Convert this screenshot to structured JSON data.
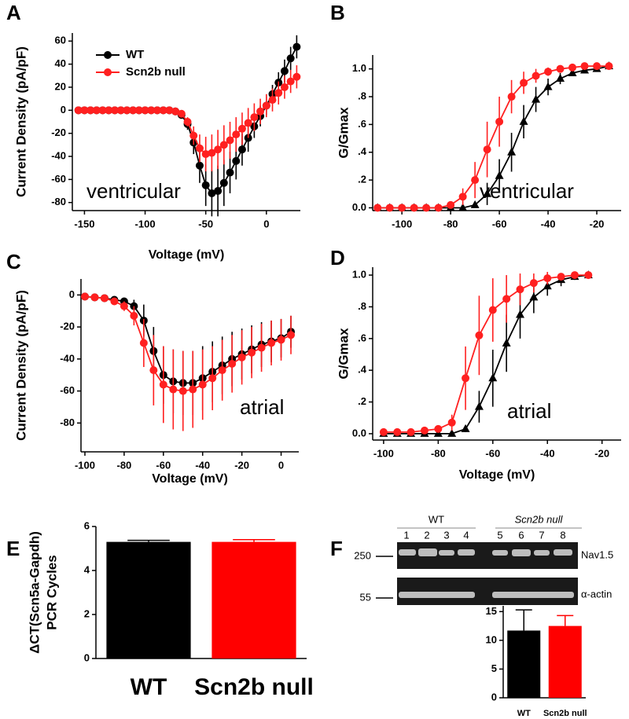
{
  "chart_data": [
    {
      "type": "line",
      "panel": "A",
      "xlabel": "Voltage (mV)",
      "ylabel": "Current Density (pA/pF)",
      "annotation": "ventricular",
      "xlim": [
        -160,
        28
      ],
      "ylim": [
        -87,
        67
      ],
      "xticks": [
        -150,
        -100,
        -50,
        0
      ],
      "yticks": [
        -80,
        -60,
        -40,
        -20,
        0,
        20,
        40,
        60
      ],
      "legend": "upper left",
      "x": [
        -155,
        -150,
        -145,
        -140,
        -135,
        -130,
        -125,
        -120,
        -115,
        -110,
        -105,
        -100,
        -95,
        -90,
        -85,
        -80,
        -75,
        -70,
        -65,
        -60,
        -55,
        -50,
        -45,
        -40,
        -35,
        -30,
        -25,
        -20,
        -15,
        -10,
        -5,
        0,
        5,
        10,
        15,
        20,
        25
      ],
      "series": [
        {
          "name": "WT",
          "color": "#000000",
          "marker": "circle",
          "values": [
            0,
            0,
            0,
            0,
            0,
            0,
            0,
            0,
            0,
            0,
            0,
            0,
            0,
            0,
            0,
            0,
            -1,
            -4,
            -12,
            -28,
            -48,
            -65,
            -72,
            -70,
            -63,
            -54,
            -44,
            -34,
            -24,
            -14,
            -5,
            4,
            14,
            24,
            34,
            45,
            55
          ],
          "errors": [
            0,
            0,
            0,
            0,
            0,
            0,
            0,
            0,
            0,
            0,
            0,
            0,
            0,
            0,
            0,
            0,
            1,
            2,
            5,
            10,
            15,
            18,
            20,
            22,
            20,
            18,
            16,
            14,
            12,
            10,
            9,
            8,
            8,
            9,
            10,
            10,
            10
          ]
        },
        {
          "name": "Scn2b null",
          "color": "#ff2020",
          "marker": "circle",
          "values": [
            0,
            0,
            0,
            0,
            0,
            0,
            0,
            0,
            0,
            0,
            0,
            0,
            0,
            0,
            0,
            0,
            -1,
            -3,
            -10,
            -22,
            -33,
            -38,
            -37,
            -34,
            -30,
            -26,
            -21,
            -16,
            -11,
            -6,
            -1,
            4,
            9,
            15,
            20,
            25,
            29
          ],
          "errors": [
            0,
            0,
            0,
            0,
            0,
            0,
            0,
            0,
            0,
            0,
            0,
            0,
            0,
            0,
            0,
            0,
            1,
            2,
            4,
            8,
            12,
            15,
            16,
            17,
            17,
            16,
            15,
            14,
            13,
            12,
            11,
            10,
            10,
            10,
            10,
            10,
            10
          ]
        }
      ]
    },
    {
      "type": "line",
      "panel": "B",
      "ylabel": "G/Gmax",
      "annotation": "ventricular",
      "xlim": [
        -112,
        -10
      ],
      "ylim": [
        -0.02,
        1.1
      ],
      "xticks": [
        -100,
        -80,
        -60,
        -40,
        -20
      ],
      "yticks": [
        {
          "value": 0,
          "label": "0.0"
        },
        {
          "value": 0.2,
          "label": ".2"
        },
        {
          "value": 0.4,
          "label": ".4"
        },
        {
          "value": 0.6,
          "label": ".6"
        },
        {
          "value": 0.8,
          "label": ".8"
        },
        {
          "value": 1,
          "label": "1.0"
        }
      ],
      "x": [
        -110,
        -105,
        -100,
        -95,
        -90,
        -85,
        -80,
        -75,
        -70,
        -65,
        -60,
        -55,
        -50,
        -45,
        -40,
        -35,
        -30,
        -25,
        -20,
        -15
      ],
      "series": [
        {
          "color": "#000000",
          "marker": "triangle",
          "values": [
            0,
            0,
            0,
            0,
            0,
            0,
            0,
            0,
            0.02,
            0.1,
            0.23,
            0.4,
            0.62,
            0.78,
            0.87,
            0.93,
            0.97,
            0.99,
            1.0,
            1.02
          ],
          "errors": [
            0,
            0,
            0,
            0,
            0,
            0,
            0,
            0,
            0.02,
            0.08,
            0.12,
            0.14,
            0.12,
            0.09,
            0.06,
            0.04,
            0.02,
            0.02,
            0.01,
            0.01
          ]
        },
        {
          "color": "#ff2020",
          "marker": "circle",
          "values": [
            0,
            0,
            0,
            0,
            0,
            0,
            0.02,
            0.08,
            0.2,
            0.42,
            0.62,
            0.8,
            0.9,
            0.95,
            0.98,
            1.0,
            1.01,
            1.02,
            1.02,
            1.02
          ],
          "errors": [
            0,
            0,
            0,
            0,
            0,
            0,
            0.02,
            0.06,
            0.13,
            0.2,
            0.18,
            0.12,
            0.08,
            0.05,
            0.03,
            0.02,
            0.01,
            0.01,
            0.01,
            0.01
          ]
        }
      ]
    },
    {
      "type": "line",
      "panel": "C",
      "xlabel": "Voltage (mV)",
      "ylabel": "Current Density (pA/pF)",
      "annotation": "atrial",
      "xlim": [
        -102,
        9
      ],
      "ylim": [
        -98,
        10
      ],
      "xticks": [
        -100,
        -80,
        -60,
        -40,
        -20,
        0
      ],
      "yticks": [
        -80,
        -60,
        -40,
        -20,
        0
      ],
      "x": [
        -100,
        -95,
        -90,
        -85,
        -80,
        -75,
        -70,
        -65,
        -60,
        -55,
        -50,
        -45,
        -40,
        -35,
        -30,
        -25,
        -20,
        -15,
        -10,
        -5,
        0,
        5
      ],
      "series": [
        {
          "color": "#000000",
          "marker": "circle",
          "values": [
            -1,
            -1.5,
            -2,
            -3,
            -4,
            -7,
            -16,
            -35,
            -50,
            -54,
            -55,
            -55,
            -52,
            -48,
            -44,
            -40,
            -37,
            -34,
            -31,
            -29,
            -27,
            -23
          ],
          "errors": [
            0,
            0,
            0,
            0,
            2,
            4,
            10,
            15,
            18,
            20,
            20,
            20,
            20,
            19,
            18,
            17,
            16,
            15,
            14,
            13,
            12,
            10
          ]
        },
        {
          "color": "#ff2020",
          "marker": "circle",
          "values": [
            -1,
            -1.5,
            -2,
            -4,
            -7,
            -13,
            -30,
            -47,
            -56,
            -59,
            -60,
            -59,
            -56,
            -52,
            -47,
            -43,
            -39,
            -36,
            -33,
            -30,
            -28,
            -25
          ],
          "errors": [
            0,
            0,
            0,
            1,
            3,
            6,
            15,
            22,
            24,
            25,
            25,
            24,
            22,
            20,
            19,
            18,
            17,
            16,
            15,
            14,
            13,
            12
          ]
        }
      ]
    },
    {
      "type": "line",
      "panel": "D",
      "xlabel": "Voltage (mV)",
      "ylabel": "G/Gmax",
      "annotation": "atrial",
      "xlim": [
        -104,
        -13
      ],
      "ylim": [
        -0.04,
        1.05
      ],
      "xticks": [
        -100,
        -80,
        -60,
        -40,
        -20
      ],
      "yticks": [
        {
          "value": 0,
          "label": "0.0"
        },
        {
          "value": 0.2,
          "label": ".2"
        },
        {
          "value": 0.4,
          "label": ".4"
        },
        {
          "value": 0.6,
          "label": ".6"
        },
        {
          "value": 0.8,
          "label": ".8"
        },
        {
          "value": 1,
          "label": "1.0"
        }
      ],
      "x": [
        -100,
        -95,
        -90,
        -85,
        -80,
        -75,
        -70,
        -65,
        -60,
        -55,
        -50,
        -45,
        -40,
        -35,
        -30,
        -25
      ],
      "series": [
        {
          "color": "#000000",
          "marker": "triangle",
          "values": [
            0,
            0,
            0,
            0,
            0,
            0,
            0.03,
            0.17,
            0.35,
            0.57,
            0.75,
            0.86,
            0.93,
            0.97,
            0.99,
            1.0
          ],
          "errors": [
            0,
            0,
            0,
            0,
            0,
            0,
            0.02,
            0.1,
            0.18,
            0.18,
            0.15,
            0.1,
            0.06,
            0.04,
            0.02,
            0.01
          ]
        },
        {
          "color": "#ff2020",
          "marker": "circle",
          "values": [
            0.01,
            0.01,
            0.01,
            0.02,
            0.03,
            0.07,
            0.35,
            0.62,
            0.78,
            0.85,
            0.91,
            0.95,
            0.98,
            0.99,
            1.0,
            1.0
          ],
          "errors": [
            0,
            0,
            0,
            0.01,
            0.02,
            0.05,
            0.2,
            0.25,
            0.2,
            0.15,
            0.1,
            0.06,
            0.04,
            0.02,
            0.01,
            0.01
          ]
        }
      ]
    },
    {
      "type": "bar",
      "panel": "E",
      "ylabel": "ΔCT(Scn5a-Gapdh)",
      "ylabel2": "PCR Cycles",
      "categories": [
        "WT",
        "Scn2b null"
      ],
      "values": [
        5.3,
        5.3
      ],
      "errors": [
        0.07,
        0.1
      ],
      "colors": [
        "#000000",
        "#ff0000"
      ],
      "ylim": [
        0,
        6
      ],
      "yticks": [
        0,
        2,
        4,
        6
      ]
    },
    {
      "type": "bar",
      "panel": "F",
      "categories": [
        "WT",
        "Scn2b null"
      ],
      "values": [
        11.7,
        12.5
      ],
      "errors": [
        3.6,
        1.8
      ],
      "colors": [
        "#000000",
        "#ff0000"
      ],
      "ylim": [
        0,
        16
      ],
      "yticks": [
        0,
        5,
        10,
        15
      ]
    }
  ],
  "blot": {
    "groups": [
      "WT",
      "Scn2b null"
    ],
    "lanes": [
      "1",
      "2",
      "3",
      "4",
      "5",
      "6",
      "7",
      "8"
    ],
    "markers": [
      "250",
      "55"
    ],
    "proteins": [
      "Nav1.5",
      "α-actin"
    ]
  }
}
